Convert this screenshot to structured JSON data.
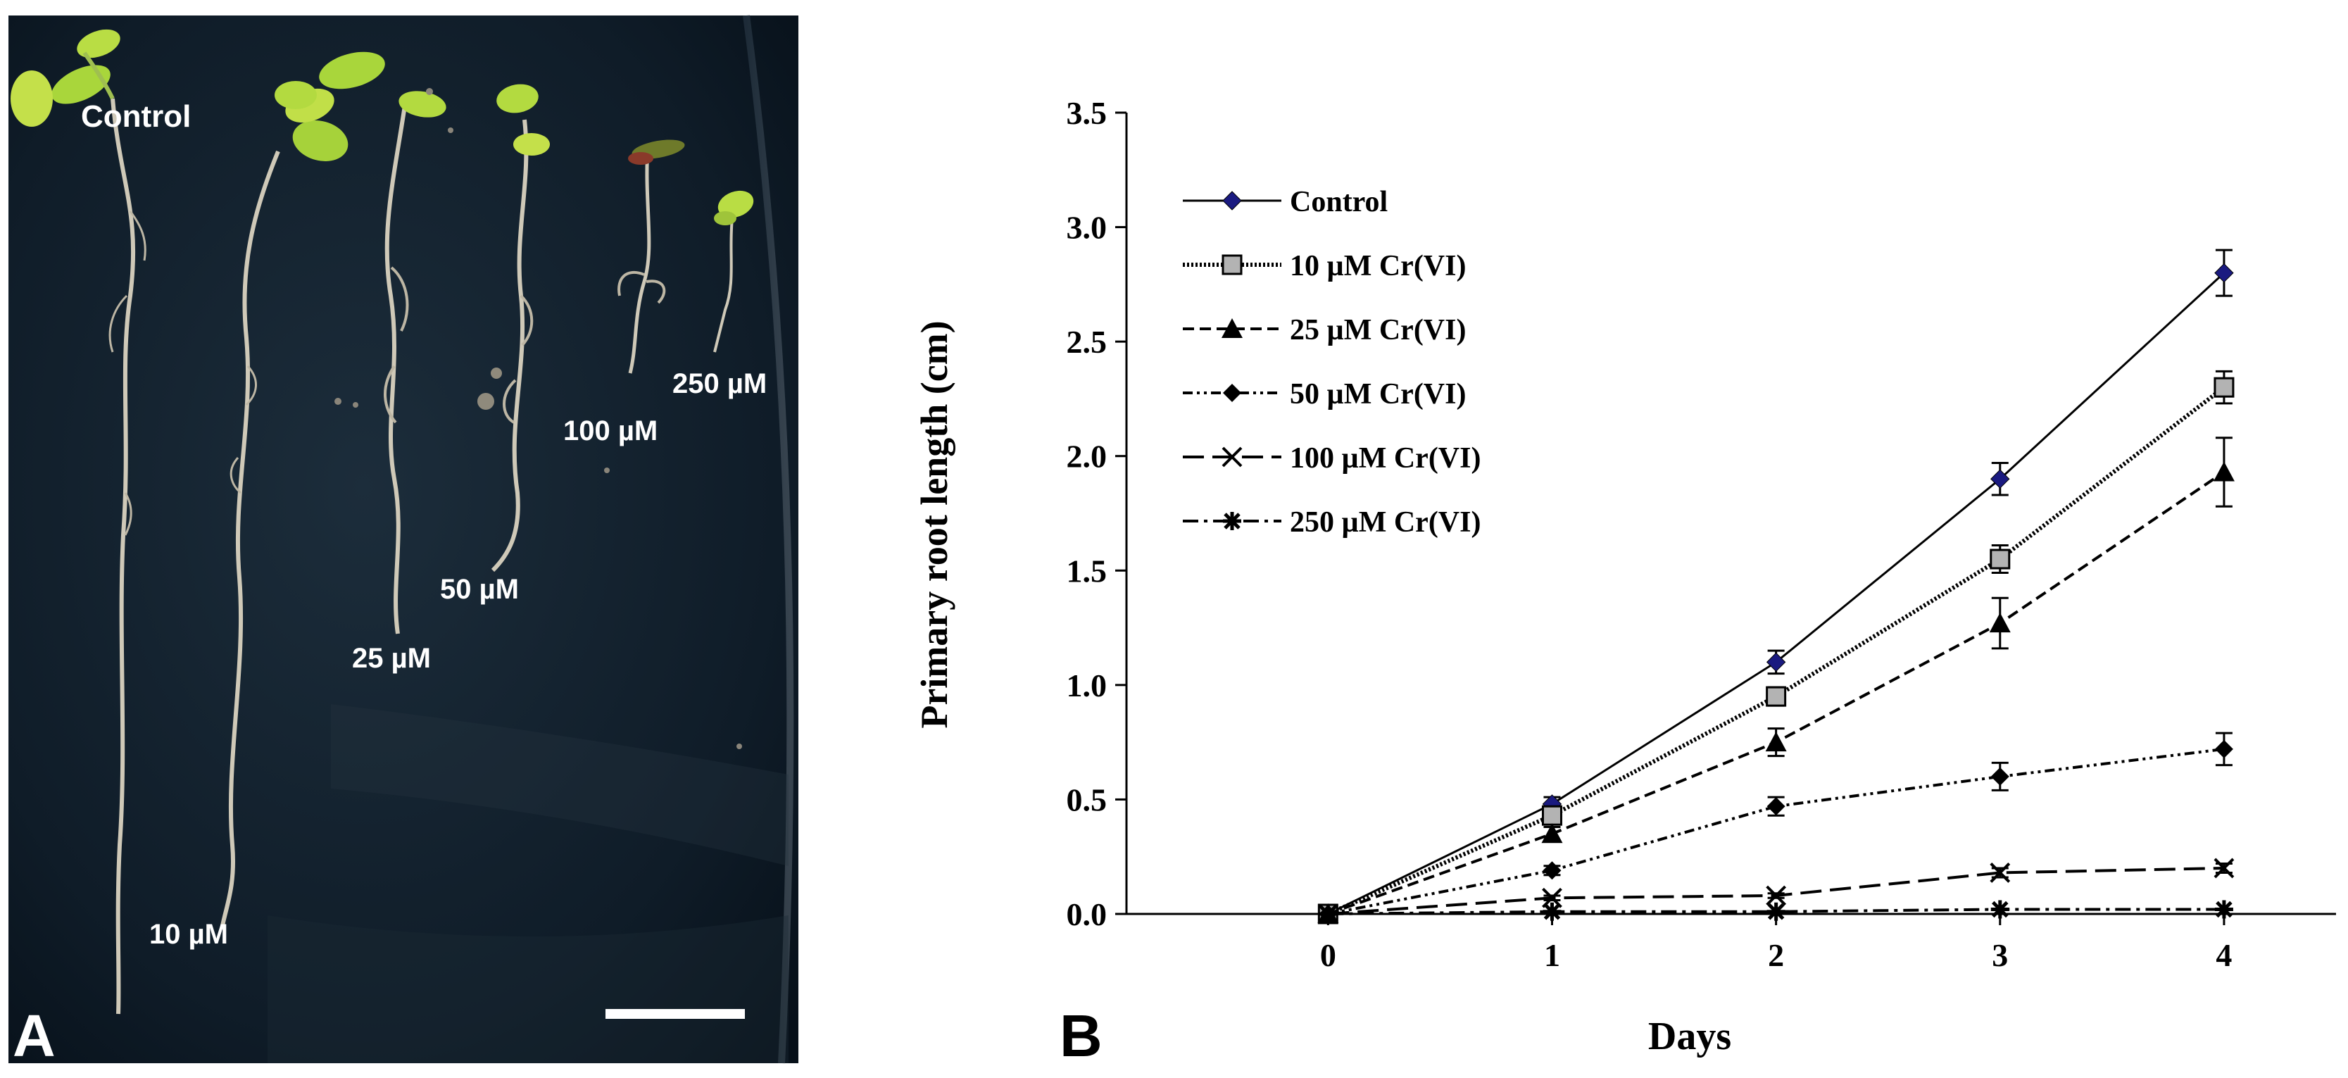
{
  "panel_a": {
    "panel_label": "A",
    "seedling_labels": {
      "control": "Control",
      "c10": "10 µM",
      "c25": "25 µM",
      "c50": "50 µM",
      "c100": "100 µM",
      "c250": "250 µM"
    },
    "colors": {
      "plate": "#0e1a26",
      "root": "#c9c3b3",
      "leaf": "#a8d43a"
    }
  },
  "panel_b": {
    "panel_label": "B"
  },
  "chart_data": {
    "type": "line",
    "title": "",
    "xlabel": "Days",
    "ylabel": "Primary root length (cm)",
    "x": [
      0,
      1,
      2,
      3,
      4
    ],
    "x_ticks": [
      "0",
      "1",
      "2",
      "3",
      "4"
    ],
    "y_ticks": [
      "0.0",
      "0.5",
      "1.0",
      "1.5",
      "2.0",
      "2.5",
      "3.0",
      "3.5"
    ],
    "xlim": [
      -0.9,
      4.5
    ],
    "ylim": [
      0,
      3.5
    ],
    "grid": false,
    "legend_position": "top-left",
    "series": [
      {
        "name": "Control",
        "values": [
          0.0,
          0.48,
          1.1,
          1.9,
          2.8
        ],
        "errors": [
          0.0,
          0.03,
          0.05,
          0.07,
          0.1
        ],
        "marker": "diamond-blue",
        "line": "solid"
      },
      {
        "name": "10 µM Cr(VI)",
        "values": [
          0.0,
          0.43,
          0.95,
          1.55,
          2.3
        ],
        "errors": [
          0.0,
          0.03,
          0.04,
          0.06,
          0.07
        ],
        "marker": "square-gray",
        "line": "dotted"
      },
      {
        "name": "25 µM Cr(VI)",
        "values": [
          0.0,
          0.35,
          0.75,
          1.27,
          1.93
        ],
        "errors": [
          0.0,
          0.03,
          0.06,
          0.11,
          0.15
        ],
        "marker": "triangle",
        "line": "dashed"
      },
      {
        "name": "50 µM Cr(VI)",
        "values": [
          0.0,
          0.19,
          0.47,
          0.6,
          0.72
        ],
        "errors": [
          0.0,
          0.02,
          0.04,
          0.06,
          0.07
        ],
        "marker": "diamond",
        "line": "dash-dot-dot"
      },
      {
        "name": "100 µM Cr(VI)",
        "values": [
          0.0,
          0.07,
          0.08,
          0.18,
          0.2
        ],
        "errors": [
          0.0,
          0.01,
          0.01,
          0.02,
          0.02
        ],
        "marker": "x",
        "line": "long-dash"
      },
      {
        "name": "250 µM Cr(VI)",
        "values": [
          0.0,
          0.01,
          0.01,
          0.02,
          0.02
        ],
        "errors": [
          0.0,
          0.0,
          0.0,
          0.0,
          0.0
        ],
        "marker": "star",
        "line": "dash-dot"
      }
    ]
  }
}
